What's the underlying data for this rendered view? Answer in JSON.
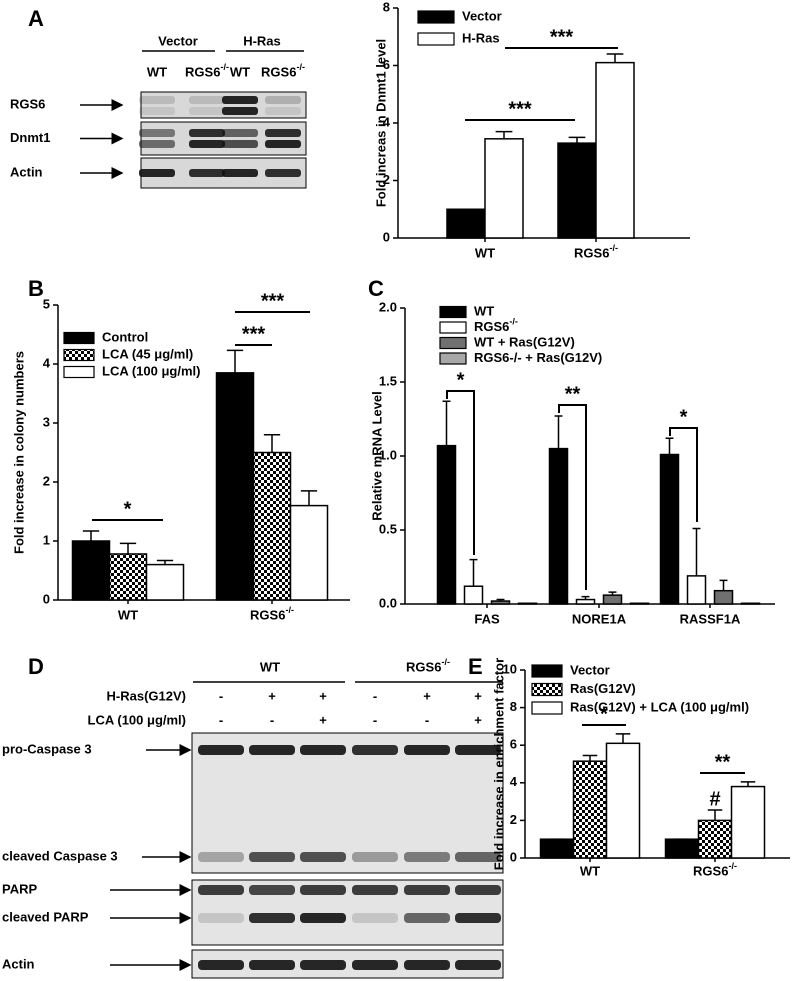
{
  "panels": [
    "A",
    "B",
    "C",
    "D",
    "E"
  ],
  "blot_a": {
    "groups": [
      "Vector",
      "H-Ras"
    ],
    "lanes": [
      "WT",
      "RGS6-/-",
      "WT",
      "RGS6-/-"
    ],
    "rows": [
      "RGS6",
      "Dnmt1",
      "Actin"
    ]
  },
  "blot_d": {
    "groups": [
      "WT",
      "RGS6-/-"
    ],
    "conditions": [
      {
        "label": "H-Ras(G12V)",
        "signs": [
          "-",
          "+",
          "+",
          "-",
          "+",
          "+"
        ]
      },
      {
        "label": "LCA (100 μg/ml)",
        "signs": [
          "-",
          "-",
          "+",
          "-",
          "-",
          "+"
        ]
      }
    ],
    "rows": [
      "pro-Caspase 3",
      "cleaved Caspase 3",
      "PARP",
      "cleaved PARP",
      "Actin"
    ]
  },
  "chart_data": [
    {
      "type": "bar",
      "ylabel": "Fold increas in Dnmt1 level",
      "categories": [
        "WT",
        "RGS6-/-"
      ],
      "ylim": [
        0,
        8
      ],
      "yticks": [
        0,
        2,
        4,
        6,
        8
      ],
      "legend": "upper left",
      "series": [
        {
          "name": "Vector",
          "color": "#000000",
          "values": [
            1,
            3.3
          ],
          "errors": [
            0,
            0.2
          ]
        },
        {
          "name": "H-Ras",
          "color": "#ffffff",
          "values": [
            3.45,
            6.1
          ],
          "errors": [
            0.25,
            0.3
          ]
        }
      ],
      "annotations": [
        "***",
        "***"
      ]
    },
    {
      "type": "bar",
      "ylabel": "Fold increase in colony numbers",
      "categories": [
        "WT",
        "RGS6-/-"
      ],
      "ylim": [
        0,
        5
      ],
      "yticks": [
        0,
        1,
        2,
        3,
        4,
        5
      ],
      "legend": "upper left",
      "series": [
        {
          "name": "Control",
          "color": "#000000",
          "values": [
            1.0,
            3.85
          ],
          "errors": [
            0.17,
            0.38
          ]
        },
        {
          "name": "LCA (45 μg/ml)",
          "color": "#ffffff",
          "pattern": "checker",
          "values": [
            0.78,
            2.5
          ],
          "errors": [
            0.18,
            0.3
          ]
        },
        {
          "name": "LCA (100 μg/ml)",
          "color": "#ffffff",
          "values": [
            0.6,
            1.6
          ],
          "errors": [
            0.07,
            0.25
          ]
        }
      ],
      "annotations": [
        "*",
        "***",
        "***"
      ]
    },
    {
      "type": "bar",
      "ylabel": "Relative mRNA Level",
      "categories": [
        "FAS",
        "NORE1A",
        "RASSF1A"
      ],
      "ylim": [
        0,
        2
      ],
      "yticks": [
        {
          "value": 0,
          "label": "0.0"
        },
        {
          "value": 0.5,
          "label": "0.5"
        },
        {
          "value": 1,
          "label": "1.0"
        },
        {
          "value": 1.5,
          "label": "1.5"
        },
        {
          "value": 2,
          "label": "2.0"
        }
      ],
      "legend": "upper left",
      "series": [
        {
          "name": "WT",
          "color": "#000000",
          "values": [
            1.07,
            1.05,
            1.01
          ],
          "errors": [
            0.3,
            0.22,
            0.11
          ]
        },
        {
          "name": "RGS6-/-",
          "color": "#ffffff",
          "values": [
            0.12,
            0.03,
            0.19
          ],
          "errors": [
            0.18,
            0.02,
            0.32
          ]
        },
        {
          "name": "WT + Ras(G12V)",
          "color": "#707070",
          "values": [
            0.02,
            0.06,
            0.09
          ],
          "errors": [
            0.01,
            0.02,
            0.07
          ]
        },
        {
          "name": "RGS6-/- + Ras(G12V)",
          "color": "#a8a8a8",
          "values": [
            0.005,
            0.005,
            0.005
          ],
          "errors": [
            0,
            0,
            0
          ]
        }
      ],
      "annotations": [
        "*",
        "**",
        "*"
      ]
    },
    {
      "type": "bar",
      "ylabel": "Fold increase in enrichment factor",
      "categories": [
        "WT",
        "RGS6-/-"
      ],
      "ylim": [
        0,
        10
      ],
      "yticks": [
        0,
        2,
        4,
        6,
        8,
        10
      ],
      "legend": "upper left",
      "series": [
        {
          "name": "Vector",
          "color": "#000000",
          "values": [
            1,
            1
          ],
          "errors": [
            0,
            0
          ]
        },
        {
          "name": "Ras(G12V)",
          "color": "#ffffff",
          "pattern": "checker",
          "values": [
            5.15,
            2.0
          ],
          "errors": [
            0.3,
            0.55
          ]
        },
        {
          "name": "Ras(G12V) + LCA (100 μg/ml)",
          "color": "#ffffff",
          "values": [
            6.1,
            3.8
          ],
          "errors": [
            0.5,
            0.25
          ]
        }
      ],
      "annotations": [
        "*",
        "**",
        "#"
      ]
    }
  ]
}
